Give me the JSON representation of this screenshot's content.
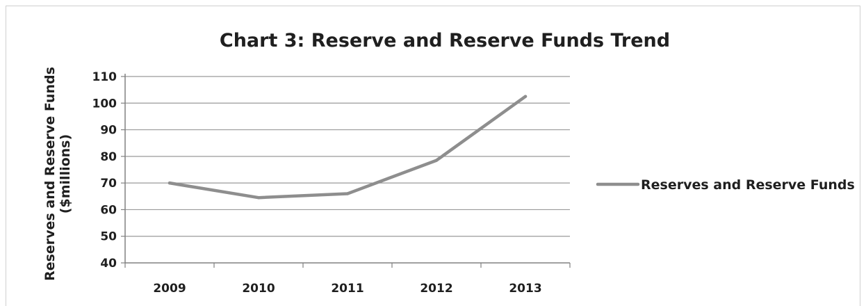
{
  "chart_data": {
    "type": "line",
    "title": "Chart 3: Reserve and Reserve Funds Trend",
    "ylabel": [
      "Reserves and Reserve Funds",
      "($millions)"
    ],
    "xlabel": "",
    "categories": [
      "2009",
      "2010",
      "2011",
      "2012",
      "2013"
    ],
    "series": [
      {
        "name": "Reserves and Reserve Funds",
        "values": [
          70,
          64.5,
          66,
          78.5,
          102.5
        ]
      }
    ],
    "ylim": [
      40,
      110
    ],
    "yticks": [
      40,
      50,
      60,
      70,
      80,
      90,
      100,
      110
    ],
    "grid": true,
    "legend_position": "right",
    "colors": {
      "series_line": "#8e8e8e",
      "gridline": "#9a9a9a",
      "axis": "#808080",
      "text": "#1f1f1f"
    }
  }
}
